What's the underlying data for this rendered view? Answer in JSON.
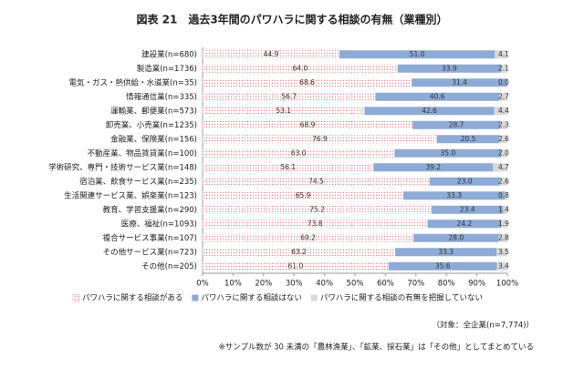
{
  "chart_data": {
    "type": "stacked-bar-horizontal",
    "title": "図表 21　過去3年間のパワハラに関する相談の有無（業種別）",
    "categories": [
      "建設業(n=680)",
      "製造業(n=1736)",
      "電気・ガス・熱供給・水道業(n=35)",
      "情報通信業(n=335)",
      "運輸業、郵便業(n=573)",
      "卸売業、小売業(n=1235)",
      "金融業、保険業(n=156)",
      "不動産業、物品賃貸業(n=100)",
      "学術研究、専門・技術サービス業(n=148)",
      "宿泊業、飲食サービス業(n=235)",
      "生活関連サービス業、娯楽業(n=123)",
      "教育、学習支援業(n=290)",
      "医療、福祉(n=1093)",
      "複合サービス事業(n=107)",
      "その他サービス業(n=723)",
      "その他(n=205)"
    ],
    "series": [
      {
        "name": "パワハラに関する相談がある",
        "color": "#f08c8c",
        "values": [
          44.9,
          64.0,
          68.6,
          56.7,
          53.1,
          68.9,
          76.9,
          63.0,
          56.1,
          74.5,
          65.9,
          75.2,
          73.8,
          69.2,
          63.2,
          61.0
        ],
        "value_labels": [
          "44.9",
          "64.0",
          "68.6",
          "56.7",
          "53.1",
          "68.9",
          "76.9",
          "63.0",
          "56.1",
          "74.5",
          "65.9",
          "75.2",
          "73.8",
          "69.2",
          "63.2",
          "61.0"
        ]
      },
      {
        "name": "パワハラに関する相談はない",
        "color": "#8eaad6",
        "values": [
          51.0,
          33.9,
          31.4,
          40.6,
          42.6,
          28.7,
          20.5,
          35.0,
          39.2,
          23.0,
          33.3,
          23.4,
          24.2,
          28.0,
          33.3,
          35.6
        ],
        "value_labels": [
          "51.0",
          "33.9",
          "31.4",
          "40.6",
          "42.6",
          "28.7",
          "20.5",
          "35.0",
          "39.2",
          "23.0",
          "33.3",
          "23.4",
          "24.2",
          "28.0",
          "33.3",
          "35.6"
        ]
      },
      {
        "name": "パワハラに関する相談の有無を把握していない",
        "color": "#d9d9d9",
        "values": [
          4.1,
          2.1,
          0.0,
          2.7,
          4.4,
          2.3,
          2.6,
          2.0,
          4.7,
          2.6,
          0.8,
          1.4,
          1.9,
          2.8,
          3.5,
          3.4
        ],
        "value_labels": [
          "4.1",
          "2.1",
          "0.0",
          "2.7",
          "4.4",
          "2.3",
          "2.6",
          "2.0",
          "4.7",
          "2.6",
          "0.8",
          "1.4",
          "1.9",
          "2.8",
          "3.5",
          "3.4"
        ]
      }
    ],
    "xlim": [
      0,
      100
    ],
    "xticks": [
      {
        "value": 0,
        "label": "0%"
      },
      {
        "value": 10,
        "label": "10%"
      },
      {
        "value": 20,
        "label": "20%"
      },
      {
        "value": 30,
        "label": "30%"
      },
      {
        "value": 40,
        "label": "40%"
      },
      {
        "value": 50,
        "label": "50%"
      },
      {
        "value": 60,
        "label": "60%"
      },
      {
        "value": 70,
        "label": "70%"
      },
      {
        "value": 80,
        "label": "80%"
      },
      {
        "value": 90,
        "label": "90%"
      },
      {
        "value": 100,
        "label": "100%"
      }
    ],
    "legend_position": "bottom",
    "notes": [
      "（対象：全企業(n=7,774)）",
      "※サンプル数が 30 未満の「農林漁業」、「鉱業、採石業」は「その他」としてまとめている"
    ]
  }
}
